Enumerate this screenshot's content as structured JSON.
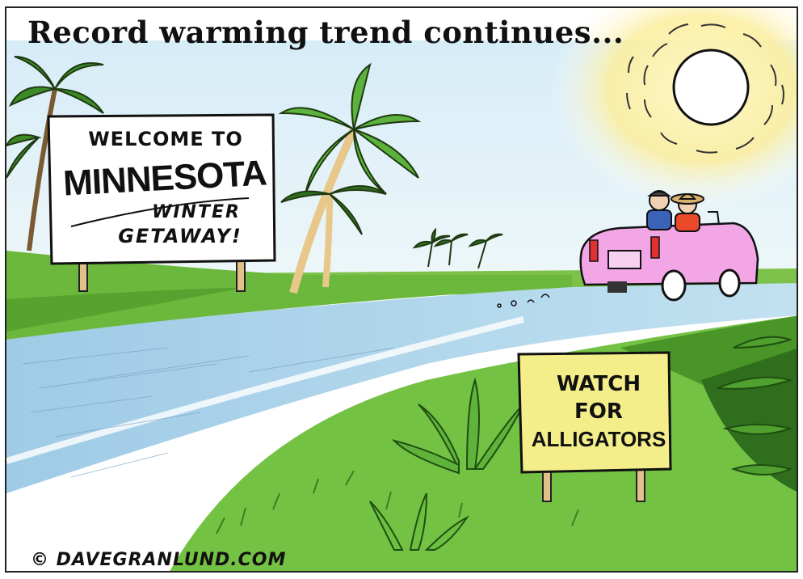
{
  "caption": "Record warming trend continues...",
  "welcome_sign": {
    "line1": "WELCOME TO",
    "line2": "MINNESOTA",
    "line3": "WINTER",
    "line4": "GETAWAY!"
  },
  "alligator_sign": {
    "line1": "WATCH",
    "line2": "FOR",
    "line3": "ALLIGATORS"
  },
  "signature": "© DAVEGRANLUND.COM",
  "colors": {
    "sky": "#dff0f6",
    "grass": "#6fbf3a",
    "dark_grass": "#2f6e1d",
    "road": "#a9d3ea",
    "sun_glow": "#fbf1a8",
    "sign_white": "#ffffff",
    "sign_yellow": "#f4ee8a",
    "car": "#f2a6e6"
  }
}
